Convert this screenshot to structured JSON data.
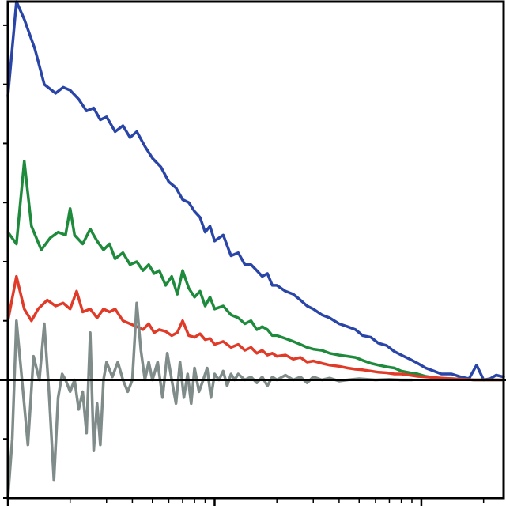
{
  "chart_data": {
    "type": "line",
    "title": "",
    "xlabel": "",
    "ylabel": "",
    "x_scale": "log",
    "xlim": [
      1,
      250
    ],
    "ylim": [
      -2,
      6.4
    ],
    "grid": false,
    "zero_line": true,
    "tick_labels_shown": false,
    "series": [
      {
        "color": "#2a45a8",
        "points": [
          [
            1,
            4.8
          ],
          [
            1.1,
            6.4
          ],
          [
            1.2,
            6.1
          ],
          [
            1.35,
            5.6
          ],
          [
            1.5,
            5.0
          ],
          [
            1.7,
            4.85
          ],
          [
            1.85,
            4.95
          ],
          [
            2,
            4.9
          ],
          [
            2.2,
            4.75
          ],
          [
            2.4,
            4.55
          ],
          [
            2.6,
            4.6
          ],
          [
            2.8,
            4.4
          ],
          [
            3,
            4.45
          ],
          [
            3.3,
            4.2
          ],
          [
            3.6,
            4.3
          ],
          [
            3.9,
            4.1
          ],
          [
            4.2,
            4.2
          ],
          [
            4.6,
            3.95
          ],
          [
            5,
            3.75
          ],
          [
            5.5,
            3.6
          ],
          [
            6,
            3.35
          ],
          [
            6.5,
            3.25
          ],
          [
            7,
            3.05
          ],
          [
            7.5,
            3.0
          ],
          [
            8,
            2.85
          ],
          [
            8.5,
            2.75
          ],
          [
            9,
            2.5
          ],
          [
            9.5,
            2.6
          ],
          [
            10,
            2.35
          ],
          [
            11,
            2.45
          ],
          [
            12,
            2.1
          ],
          [
            13,
            2.15
          ],
          [
            14,
            1.95
          ],
          [
            15,
            1.95
          ],
          [
            16,
            1.85
          ],
          [
            17,
            1.75
          ],
          [
            18,
            1.8
          ],
          [
            19,
            1.6
          ],
          [
            20,
            1.6
          ],
          [
            22,
            1.5
          ],
          [
            24,
            1.45
          ],
          [
            26,
            1.35
          ],
          [
            28,
            1.25
          ],
          [
            30,
            1.2
          ],
          [
            33,
            1.1
          ],
          [
            36,
            1.05
          ],
          [
            40,
            0.95
          ],
          [
            44,
            0.9
          ],
          [
            48,
            0.85
          ],
          [
            52,
            0.75
          ],
          [
            57,
            0.72
          ],
          [
            62,
            0.62
          ],
          [
            68,
            0.58
          ],
          [
            74,
            0.48
          ],
          [
            80,
            0.42
          ],
          [
            88,
            0.35
          ],
          [
            96,
            0.28
          ],
          [
            105,
            0.2
          ],
          [
            115,
            0.15
          ],
          [
            125,
            0.1
          ],
          [
            140,
            0.1
          ],
          [
            155,
            0.05
          ],
          [
            170,
            0.02
          ],
          [
            185,
            0.25
          ],
          [
            200,
            0.0
          ],
          [
            215,
            0.02
          ],
          [
            230,
            0.08
          ],
          [
            250,
            0.05
          ]
        ]
      },
      {
        "color": "#1e8a3c",
        "points": [
          [
            1,
            2.5
          ],
          [
            1.1,
            2.3
          ],
          [
            1.2,
            3.7
          ],
          [
            1.3,
            2.6
          ],
          [
            1.45,
            2.2
          ],
          [
            1.6,
            2.4
          ],
          [
            1.75,
            2.5
          ],
          [
            1.9,
            2.45
          ],
          [
            2,
            2.9
          ],
          [
            2.1,
            2.45
          ],
          [
            2.3,
            2.3
          ],
          [
            2.5,
            2.55
          ],
          [
            2.7,
            2.35
          ],
          [
            2.9,
            2.2
          ],
          [
            3.1,
            2.3
          ],
          [
            3.3,
            2.05
          ],
          [
            3.6,
            2.15
          ],
          [
            3.9,
            1.95
          ],
          [
            4.2,
            2.0
          ],
          [
            4.5,
            1.85
          ],
          [
            4.8,
            1.95
          ],
          [
            5.1,
            1.8
          ],
          [
            5.4,
            1.85
          ],
          [
            5.8,
            1.6
          ],
          [
            6.2,
            1.75
          ],
          [
            6.6,
            1.45
          ],
          [
            7,
            1.85
          ],
          [
            7.5,
            1.55
          ],
          [
            8,
            1.4
          ],
          [
            8.5,
            1.5
          ],
          [
            9,
            1.25
          ],
          [
            9.5,
            1.4
          ],
          [
            10,
            1.2
          ],
          [
            11,
            1.25
          ],
          [
            12,
            1.1
          ],
          [
            13,
            1.05
          ],
          [
            14,
            0.95
          ],
          [
            15,
            1.0
          ],
          [
            16,
            0.85
          ],
          [
            17,
            0.9
          ],
          [
            18,
            0.85
          ],
          [
            19,
            0.75
          ],
          [
            20,
            0.75
          ],
          [
            22,
            0.7
          ],
          [
            24,
            0.65
          ],
          [
            26,
            0.6
          ],
          [
            28,
            0.55
          ],
          [
            30,
            0.52
          ],
          [
            33,
            0.5
          ],
          [
            36,
            0.45
          ],
          [
            40,
            0.42
          ],
          [
            44,
            0.4
          ],
          [
            48,
            0.38
          ],
          [
            52,
            0.33
          ],
          [
            57,
            0.28
          ],
          [
            62,
            0.25
          ],
          [
            68,
            0.22
          ],
          [
            74,
            0.2
          ],
          [
            80,
            0.15
          ],
          [
            88,
            0.12
          ],
          [
            96,
            0.1
          ],
          [
            105,
            0.06
          ],
          [
            115,
            0.04
          ],
          [
            125,
            0.02
          ],
          [
            140,
            0.02
          ],
          [
            160,
            0.01
          ],
          [
            180,
            0.0
          ],
          [
            200,
            0.0
          ],
          [
            250,
            0.0
          ]
        ]
      },
      {
        "color": "#e03a28",
        "points": [
          [
            1,
            1.0
          ],
          [
            1.1,
            1.75
          ],
          [
            1.2,
            1.2
          ],
          [
            1.3,
            1.0
          ],
          [
            1.4,
            1.2
          ],
          [
            1.55,
            1.35
          ],
          [
            1.7,
            1.25
          ],
          [
            1.85,
            1.3
          ],
          [
            2,
            1.2
          ],
          [
            2.15,
            1.5
          ],
          [
            2.3,
            1.15
          ],
          [
            2.5,
            1.2
          ],
          [
            2.7,
            1.05
          ],
          [
            2.9,
            1.2
          ],
          [
            3.1,
            1.15
          ],
          [
            3.3,
            1.2
          ],
          [
            3.6,
            1.0
          ],
          [
            3.9,
            0.95
          ],
          [
            4.2,
            0.9
          ],
          [
            4.5,
            0.85
          ],
          [
            4.8,
            0.95
          ],
          [
            5.1,
            0.8
          ],
          [
            5.4,
            0.85
          ],
          [
            5.8,
            0.82
          ],
          [
            6.2,
            0.75
          ],
          [
            6.6,
            0.8
          ],
          [
            7,
            1.0
          ],
          [
            7.5,
            0.75
          ],
          [
            8,
            0.72
          ],
          [
            8.5,
            0.78
          ],
          [
            9,
            0.68
          ],
          [
            9.5,
            0.7
          ],
          [
            10,
            0.6
          ],
          [
            11,
            0.65
          ],
          [
            12,
            0.55
          ],
          [
            13,
            0.6
          ],
          [
            14,
            0.5
          ],
          [
            15,
            0.55
          ],
          [
            16,
            0.45
          ],
          [
            17,
            0.5
          ],
          [
            18,
            0.42
          ],
          [
            19,
            0.45
          ],
          [
            20,
            0.4
          ],
          [
            22,
            0.42
          ],
          [
            24,
            0.35
          ],
          [
            26,
            0.38
          ],
          [
            28,
            0.3
          ],
          [
            30,
            0.32
          ],
          [
            33,
            0.28
          ],
          [
            36,
            0.25
          ],
          [
            40,
            0.23
          ],
          [
            44,
            0.2
          ],
          [
            48,
            0.18
          ],
          [
            52,
            0.17
          ],
          [
            57,
            0.15
          ],
          [
            62,
            0.13
          ],
          [
            68,
            0.12
          ],
          [
            74,
            0.1
          ],
          [
            80,
            0.1
          ],
          [
            88,
            0.08
          ],
          [
            96,
            0.06
          ],
          [
            105,
            0.05
          ],
          [
            115,
            0.04
          ],
          [
            125,
            0.03
          ],
          [
            140,
            0.02
          ],
          [
            160,
            0.01
          ],
          [
            180,
            0.0
          ],
          [
            210,
            0.0
          ],
          [
            250,
            0.0
          ]
        ]
      },
      {
        "color": "#7f8c8a",
        "points": [
          [
            1,
            -2.0
          ],
          [
            1.05,
            -1.0
          ],
          [
            1.1,
            1.0
          ],
          [
            1.17,
            0.0
          ],
          [
            1.25,
            -1.1
          ],
          [
            1.33,
            0.4
          ],
          [
            1.42,
            0.0
          ],
          [
            1.5,
            0.95
          ],
          [
            1.58,
            -0.2
          ],
          [
            1.67,
            -1.7
          ],
          [
            1.75,
            -0.3
          ],
          [
            1.83,
            0.1
          ],
          [
            1.9,
            0.0
          ],
          [
            2,
            -0.2
          ],
          [
            2.1,
            0.0
          ],
          [
            2.2,
            -0.5
          ],
          [
            2.3,
            -0.2
          ],
          [
            2.4,
            -0.9
          ],
          [
            2.5,
            0.8
          ],
          [
            2.6,
            -1.2
          ],
          [
            2.7,
            -0.4
          ],
          [
            2.8,
            -1.1
          ],
          [
            2.9,
            0.0
          ],
          [
            3.0,
            0.3
          ],
          [
            3.2,
            0.05
          ],
          [
            3.4,
            0.3
          ],
          [
            3.6,
            0.0
          ],
          [
            3.8,
            -0.2
          ],
          [
            4.0,
            0.0
          ],
          [
            4.2,
            1.3
          ],
          [
            4.4,
            0.5
          ],
          [
            4.6,
            0.0
          ],
          [
            4.8,
            0.3
          ],
          [
            5.0,
            0.0
          ],
          [
            5.3,
            0.3
          ],
          [
            5.6,
            -0.3
          ],
          [
            5.9,
            0.45
          ],
          [
            6.2,
            0.0
          ],
          [
            6.5,
            -0.4
          ],
          [
            6.8,
            0.3
          ],
          [
            7.1,
            -0.3
          ],
          [
            7.4,
            0.1
          ],
          [
            7.7,
            -0.4
          ],
          [
            8.0,
            0.2
          ],
          [
            8.4,
            -0.2
          ],
          [
            8.8,
            0.0
          ],
          [
            9.2,
            0.2
          ],
          [
            9.6,
            -0.3
          ],
          [
            10,
            0.1
          ],
          [
            10.5,
            0.0
          ],
          [
            11,
            0.15
          ],
          [
            11.5,
            -0.1
          ],
          [
            12,
            0.1
          ],
          [
            12.5,
            0.0
          ],
          [
            13,
            0.1
          ],
          [
            14,
            0.0
          ],
          [
            15,
            0.05
          ],
          [
            16,
            -0.05
          ],
          [
            17,
            0.05
          ],
          [
            18,
            -0.1
          ],
          [
            19,
            0.05
          ],
          [
            20,
            0.0
          ],
          [
            22,
            0.08
          ],
          [
            24,
            0.0
          ],
          [
            26,
            0.05
          ],
          [
            28,
            -0.05
          ],
          [
            30,
            0.05
          ],
          [
            33,
            0.0
          ],
          [
            36,
            0.03
          ],
          [
            40,
            -0.02
          ],
          [
            44,
            0.0
          ],
          [
            50,
            0.02
          ],
          [
            60,
            0.0
          ],
          [
            70,
            0.01
          ],
          [
            80,
            0.0
          ],
          [
            90,
            0.0
          ]
        ]
      }
    ]
  }
}
